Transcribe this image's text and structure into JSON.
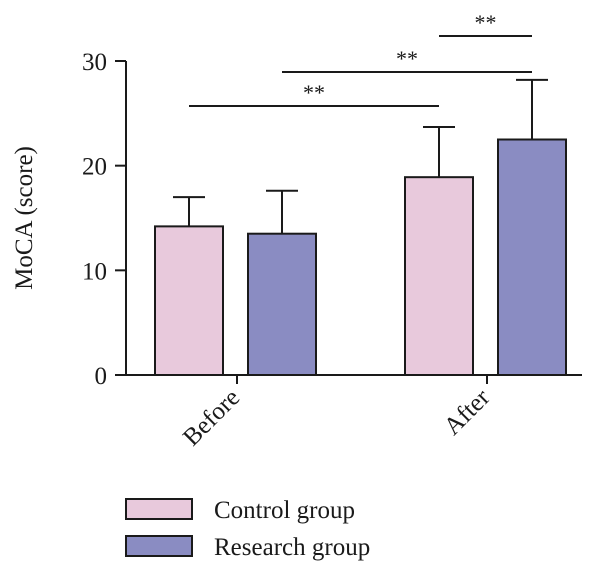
{
  "chart_data": {
    "type": "bar",
    "ylabel": "MoCA (score)",
    "ylim": [
      0,
      30
    ],
    "yticks": [
      0,
      10,
      20,
      30
    ],
    "categories": [
      "Before",
      "After"
    ],
    "series": [
      {
        "name": "Control group",
        "color": "#e8c9dc",
        "values": [
          14.2,
          18.9
        ],
        "errors": [
          2.8,
          4.8
        ]
      },
      {
        "name": "Research group",
        "color": "#8a8cc2",
        "values": [
          13.5,
          22.5
        ],
        "errors": [
          4.1,
          5.7
        ]
      }
    ],
    "significance": [
      {
        "label": "**",
        "from": "Before / Control group",
        "to": "After / Control group"
      },
      {
        "label": "**",
        "from": "Before / Research group",
        "to": "After / Research group"
      },
      {
        "label": "**",
        "from": "After / Control group",
        "to": "After / Research group"
      }
    ],
    "legend": {
      "position": "bottom"
    }
  }
}
